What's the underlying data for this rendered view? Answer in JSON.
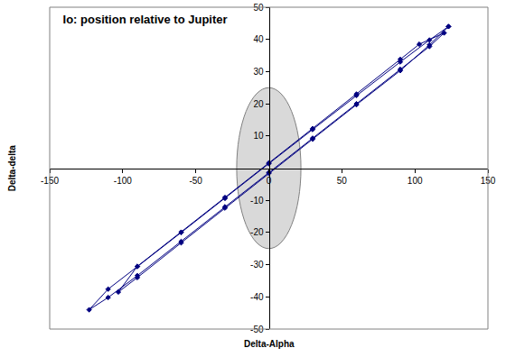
{
  "chart_data": {
    "type": "scatter",
    "title": "Io: position relative to Jupiter",
    "x_label": "Delta-Alpha",
    "y_label": "Delta-delta",
    "xlim": [
      -150,
      150
    ],
    "ylim": [
      -50,
      50
    ],
    "xticks": [
      -150,
      -100,
      -50,
      0,
      50,
      100,
      150
    ],
    "yticks": [
      -50,
      -40,
      -30,
      -20,
      -10,
      10,
      20,
      30,
      40,
      50
    ],
    "grid": false,
    "marker": "diamond",
    "line_style": "solid",
    "color": "#000080",
    "x": [
      123,
      110,
      90,
      60,
      30,
      0,
      -30,
      -60,
      -90,
      -110,
      -123,
      -110,
      -90,
      -60,
      -30,
      0,
      30,
      60,
      90,
      110,
      120,
      103,
      90,
      60,
      30,
      0,
      -30,
      -60,
      -90,
      -103,
      -90,
      -60,
      -30,
      0,
      30,
      60,
      90,
      110,
      123
    ],
    "values": [
      44,
      39.8,
      33,
      22.6,
      12,
      1.4,
      -9.4,
      -20,
      -30.6,
      -37.6,
      -44,
      -40.2,
      -33.4,
      -22.8,
      -12,
      -1.4,
      9.3,
      20,
      30.7,
      37.8,
      42,
      38.5,
      33.8,
      23,
      12.3,
      1.6,
      -9.1,
      -19.9,
      -30.5,
      -38.5,
      -34,
      -23.2,
      -12.4,
      -1.6,
      9,
      19.7,
      30.3,
      38.3,
      44
    ],
    "jupiter": {
      "x": [
        -22,
        22
      ],
      "y": [
        -25,
        25
      ],
      "color": "#d9d9d9"
    }
  }
}
